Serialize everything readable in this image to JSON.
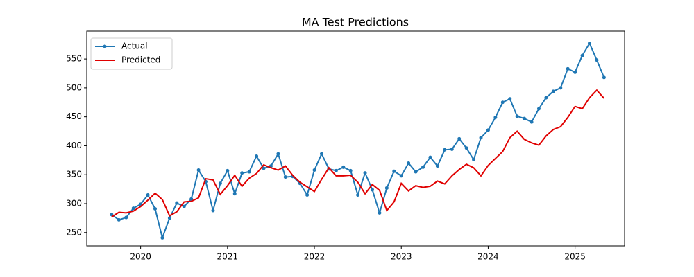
{
  "chart_data": {
    "type": "line",
    "title": "MA Test Predictions",
    "x": [
      "2019-09",
      "2019-10",
      "2019-11",
      "2019-12",
      "2020-01",
      "2020-02",
      "2020-03",
      "2020-04",
      "2020-05",
      "2020-06",
      "2020-07",
      "2020-08",
      "2020-09",
      "2020-10",
      "2020-11",
      "2020-12",
      "2021-01",
      "2021-02",
      "2021-03",
      "2021-04",
      "2021-05",
      "2021-06",
      "2021-07",
      "2021-08",
      "2021-09",
      "2021-10",
      "2021-11",
      "2021-12",
      "2022-01",
      "2022-02",
      "2022-03",
      "2022-04",
      "2022-05",
      "2022-06",
      "2022-07",
      "2022-08",
      "2022-09",
      "2022-10",
      "2022-11",
      "2022-12",
      "2023-01",
      "2023-02",
      "2023-03",
      "2023-04",
      "2023-05",
      "2023-06",
      "2023-07",
      "2023-08",
      "2023-09",
      "2023-10",
      "2023-11",
      "2023-12",
      "2024-01",
      "2024-02",
      "2024-03",
      "2024-04",
      "2024-05",
      "2024-06",
      "2024-07",
      "2024-08",
      "2024-09",
      "2024-10",
      "2024-11",
      "2024-12",
      "2025-01",
      "2025-02",
      "2025-03",
      "2025-04",
      "2025-05"
    ],
    "series": [
      {
        "name": "Actual",
        "color": "#1f77b4",
        "marker": true,
        "values": [
          281,
          272,
          276,
          292,
          299,
          315,
          291,
          241,
          275,
          301,
          295,
          308,
          358,
          338,
          288,
          335,
          357,
          317,
          353,
          355,
          382,
          361,
          365,
          386,
          346,
          347,
          335,
          315,
          358,
          386,
          360,
          357,
          363,
          357,
          315,
          353,
          324,
          284,
          327,
          356,
          348,
          370,
          355,
          363,
          380,
          365,
          393,
          394,
          412,
          396,
          376,
          414,
          427,
          449,
          475,
          481,
          451,
          447,
          441,
          464,
          483,
          494,
          500,
          533,
          527,
          556,
          577,
          548,
          518
        ]
      },
      {
        "name": "Predicted",
        "color": "#e00000",
        "marker": false,
        "values": [
          277,
          285,
          284,
          287,
          295,
          306,
          318,
          307,
          279,
          286,
          303,
          304,
          310,
          343,
          341,
          316,
          331,
          349,
          330,
          344,
          352,
          367,
          362,
          358,
          365,
          349,
          337,
          329,
          321,
          342,
          362,
          348,
          348,
          349,
          337,
          317,
          333,
          323,
          288,
          303,
          335,
          322,
          331,
          328,
          330,
          339,
          334,
          348,
          359,
          368,
          362,
          348,
          366,
          378,
          390,
          414,
          425,
          411,
          405,
          401,
          417,
          428,
          433,
          449,
          468,
          464,
          483,
          496,
          482
        ]
      }
    ],
    "xlim": [
      2019.38,
      2025.57
    ],
    "xticks": [
      2020,
      2021,
      2022,
      2023,
      2024,
      2025
    ],
    "ylim": [
      227,
      598
    ],
    "yticks": [
      250,
      300,
      350,
      400,
      450,
      500,
      550
    ],
    "legend": "upper left"
  }
}
